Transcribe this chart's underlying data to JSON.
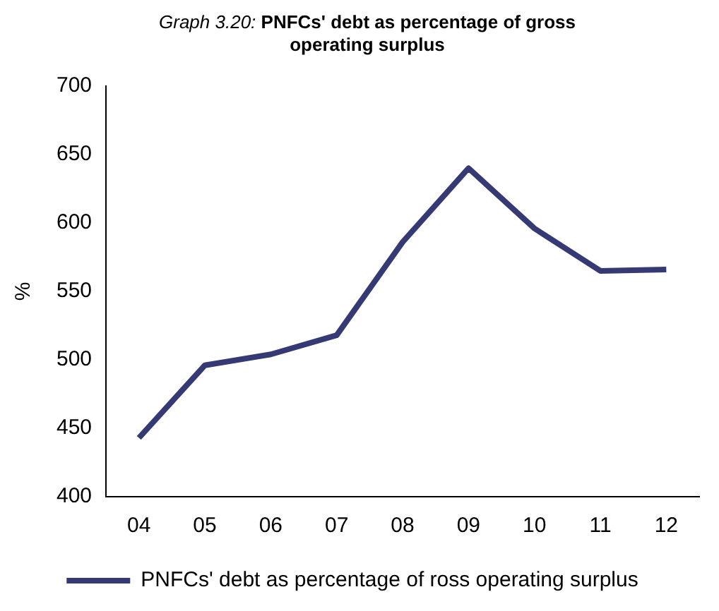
{
  "chart_data": {
    "type": "line",
    "title": "Graph 3.20: PNFCs' debt as percentage of gross operating surplus",
    "ylabel": "%",
    "categories": [
      "04",
      "05",
      "06",
      "07",
      "08",
      "09",
      "10",
      "11",
      "12"
    ],
    "series": [
      {
        "name": "PNFCs' debt as percentage of ross operating surplus",
        "color": "#353a75",
        "values": [
          443,
          496,
          504,
          518,
          586,
          640,
          596,
          565,
          566
        ]
      }
    ],
    "ylim": [
      400,
      700
    ],
    "yticks": [
      400,
      450,
      500,
      550,
      600,
      650,
      700
    ],
    "grid": false,
    "legend": "bottom",
    "marker": "none",
    "line_style": "solid"
  }
}
